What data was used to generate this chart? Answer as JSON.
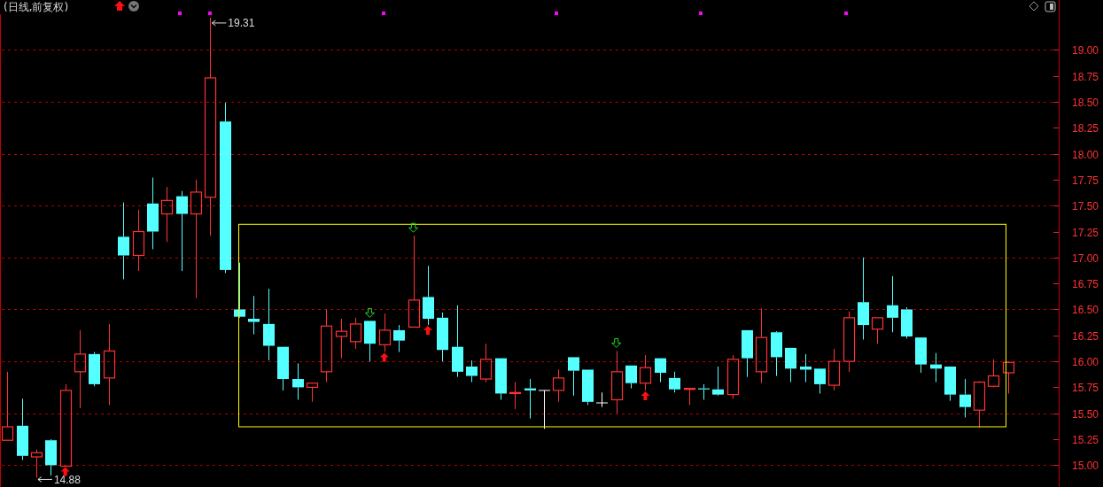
{
  "chart_data": {
    "type": "candlestick",
    "title": "(日线,前复权)",
    "categories": [
      null,
      null,
      null,
      null,
      null,
      null,
      null,
      null,
      null,
      null,
      null,
      null,
      null,
      null,
      null,
      null,
      null,
      null,
      null,
      null,
      null,
      null,
      null,
      null,
      null,
      null,
      null,
      null,
      null,
      null,
      null,
      null,
      null,
      null,
      null,
      null,
      null,
      null,
      null,
      null,
      null,
      null,
      null,
      null,
      null,
      null,
      null,
      null,
      null,
      null,
      null,
      null,
      null,
      null,
      null,
      null,
      null,
      null,
      null,
      null,
      null,
      null,
      null,
      null,
      null,
      null,
      null,
      null,
      null,
      null,
      null,
      null,
      null
    ],
    "ohlc": [
      [
        15.24,
        15.9,
        15.24,
        15.37
      ],
      [
        15.38,
        15.64,
        15.05,
        15.09
      ],
      [
        15.08,
        15.15,
        14.88,
        15.12
      ],
      [
        15.24,
        15.25,
        14.9,
        15.0
      ],
      [
        14.99,
        15.78,
        14.99,
        15.72
      ],
      [
        15.9,
        16.3,
        15.55,
        16.07
      ],
      [
        16.07,
        16.09,
        15.76,
        15.78
      ],
      [
        15.84,
        16.36,
        15.58,
        16.1
      ],
      [
        17.2,
        17.53,
        16.79,
        17.02
      ],
      [
        17.02,
        17.46,
        16.87,
        17.25
      ],
      [
        17.52,
        17.77,
        17.08,
        17.25
      ],
      [
        17.42,
        17.68,
        17.15,
        17.55
      ],
      [
        17.59,
        17.64,
        16.87,
        17.42
      ],
      [
        17.42,
        17.75,
        16.61,
        17.63
      ],
      [
        17.58,
        19.31,
        17.21,
        18.73
      ],
      [
        18.31,
        18.49,
        16.85,
        16.88
      ],
      [
        16.5,
        16.95,
        16.42,
        16.43
      ],
      [
        16.41,
        16.63,
        16.26,
        16.38
      ],
      [
        16.36,
        16.7,
        16.01,
        16.15
      ],
      [
        16.14,
        16.14,
        15.72,
        15.83
      ],
      [
        15.83,
        15.98,
        15.63,
        15.75
      ],
      [
        15.75,
        15.79,
        15.61,
        15.79
      ],
      [
        15.9,
        16.5,
        15.8,
        16.34
      ],
      [
        16.24,
        16.41,
        16.03,
        16.29
      ],
      [
        16.19,
        16.42,
        16.12,
        16.36
      ],
      [
        16.39,
        16.39,
        16.0,
        16.17
      ],
      [
        16.16,
        16.46,
        16.09,
        16.3
      ],
      [
        16.3,
        16.35,
        16.09,
        16.2
      ],
      [
        16.33,
        17.21,
        16.33,
        16.59
      ],
      [
        16.62,
        16.92,
        16.35,
        16.41
      ],
      [
        16.42,
        16.47,
        16.0,
        16.11
      ],
      [
        16.14,
        16.54,
        15.85,
        15.9
      ],
      [
        15.95,
        16.01,
        15.8,
        15.86
      ],
      [
        15.83,
        16.17,
        15.8,
        16.02
      ],
      [
        16.03,
        16.03,
        15.63,
        15.69
      ],
      [
        15.69,
        15.8,
        15.54,
        15.7
      ],
      [
        15.74,
        15.83,
        15.45,
        15.72
      ],
      [
        15.72,
        15.72,
        15.35,
        15.72
      ],
      [
        15.72,
        15.92,
        15.61,
        15.84
      ],
      [
        16.04,
        16.04,
        15.67,
        15.91
      ],
      [
        15.92,
        15.92,
        15.58,
        15.61
      ],
      [
        15.6,
        15.7,
        15.56,
        15.6
      ],
      [
        15.63,
        16.1,
        15.5,
        15.9
      ],
      [
        15.96,
        15.96,
        15.74,
        15.79
      ],
      [
        15.79,
        16.06,
        15.72,
        15.94
      ],
      [
        16.03,
        16.03,
        15.8,
        15.89
      ],
      [
        15.84,
        15.9,
        15.7,
        15.73
      ],
      [
        15.73,
        15.74,
        15.58,
        15.74
      ],
      [
        15.74,
        15.78,
        15.63,
        15.73
      ],
      [
        15.73,
        15.95,
        15.67,
        15.68
      ],
      [
        15.68,
        16.06,
        15.64,
        16.02
      ],
      [
        16.3,
        16.3,
        15.85,
        16.03
      ],
      [
        15.9,
        16.51,
        15.79,
        16.23
      ],
      [
        16.28,
        16.29,
        15.86,
        16.04
      ],
      [
        16.13,
        16.13,
        15.8,
        15.93
      ],
      [
        15.95,
        16.07,
        15.8,
        15.92
      ],
      [
        15.93,
        15.93,
        15.69,
        15.78
      ],
      [
        15.77,
        16.12,
        15.72,
        16.0
      ],
      [
        16.0,
        16.48,
        15.9,
        16.42
      ],
      [
        16.57,
        17.0,
        16.21,
        16.35
      ],
      [
        16.31,
        16.42,
        16.17,
        16.42
      ],
      [
        16.54,
        16.82,
        16.28,
        16.42
      ],
      [
        16.5,
        16.52,
        16.22,
        16.24
      ],
      [
        16.23,
        16.23,
        15.89,
        15.97
      ],
      [
        15.97,
        16.08,
        15.8,
        15.93
      ],
      [
        15.95,
        15.95,
        15.62,
        15.68
      ],
      [
        15.68,
        15.83,
        15.46,
        15.56
      ],
      [
        15.53,
        15.81,
        15.36,
        15.8
      ],
      [
        15.76,
        16.02,
        15.75,
        15.86
      ],
      [
        15.89,
        16.0,
        15.69,
        15.99
      ],
      null,
      null,
      null
    ],
    "ylim": [
      14.79,
      19.48
    ],
    "yticks": [
      {
        "value": 15,
        "label": "15.00"
      },
      {
        "value": 15.25,
        "label": "15.25"
      },
      {
        "value": 15.5,
        "label": "15.50"
      },
      {
        "value": 15.75,
        "label": "15.75"
      },
      {
        "value": 16,
        "label": "16.00"
      },
      {
        "value": 16.25,
        "label": "16.25"
      },
      {
        "value": 16.5,
        "label": "16.50"
      },
      {
        "value": 16.75,
        "label": "16.75"
      },
      {
        "value": 17,
        "label": "17.00"
      },
      {
        "value": 17.25,
        "label": "17.25"
      },
      {
        "value": 17.5,
        "label": "17.50"
      },
      {
        "value": 17.75,
        "label": "17.75"
      },
      {
        "value": 18,
        "label": "18.00"
      },
      {
        "value": 18.25,
        "label": "18.25"
      },
      {
        "value": 18.5,
        "label": "18.50"
      },
      {
        "value": 18.75,
        "label": "18.75"
      },
      {
        "value": 19,
        "label": "19.00"
      }
    ],
    "grid": "y",
    "annotations": [
      "19.31",
      "14.88"
    ]
  }
}
